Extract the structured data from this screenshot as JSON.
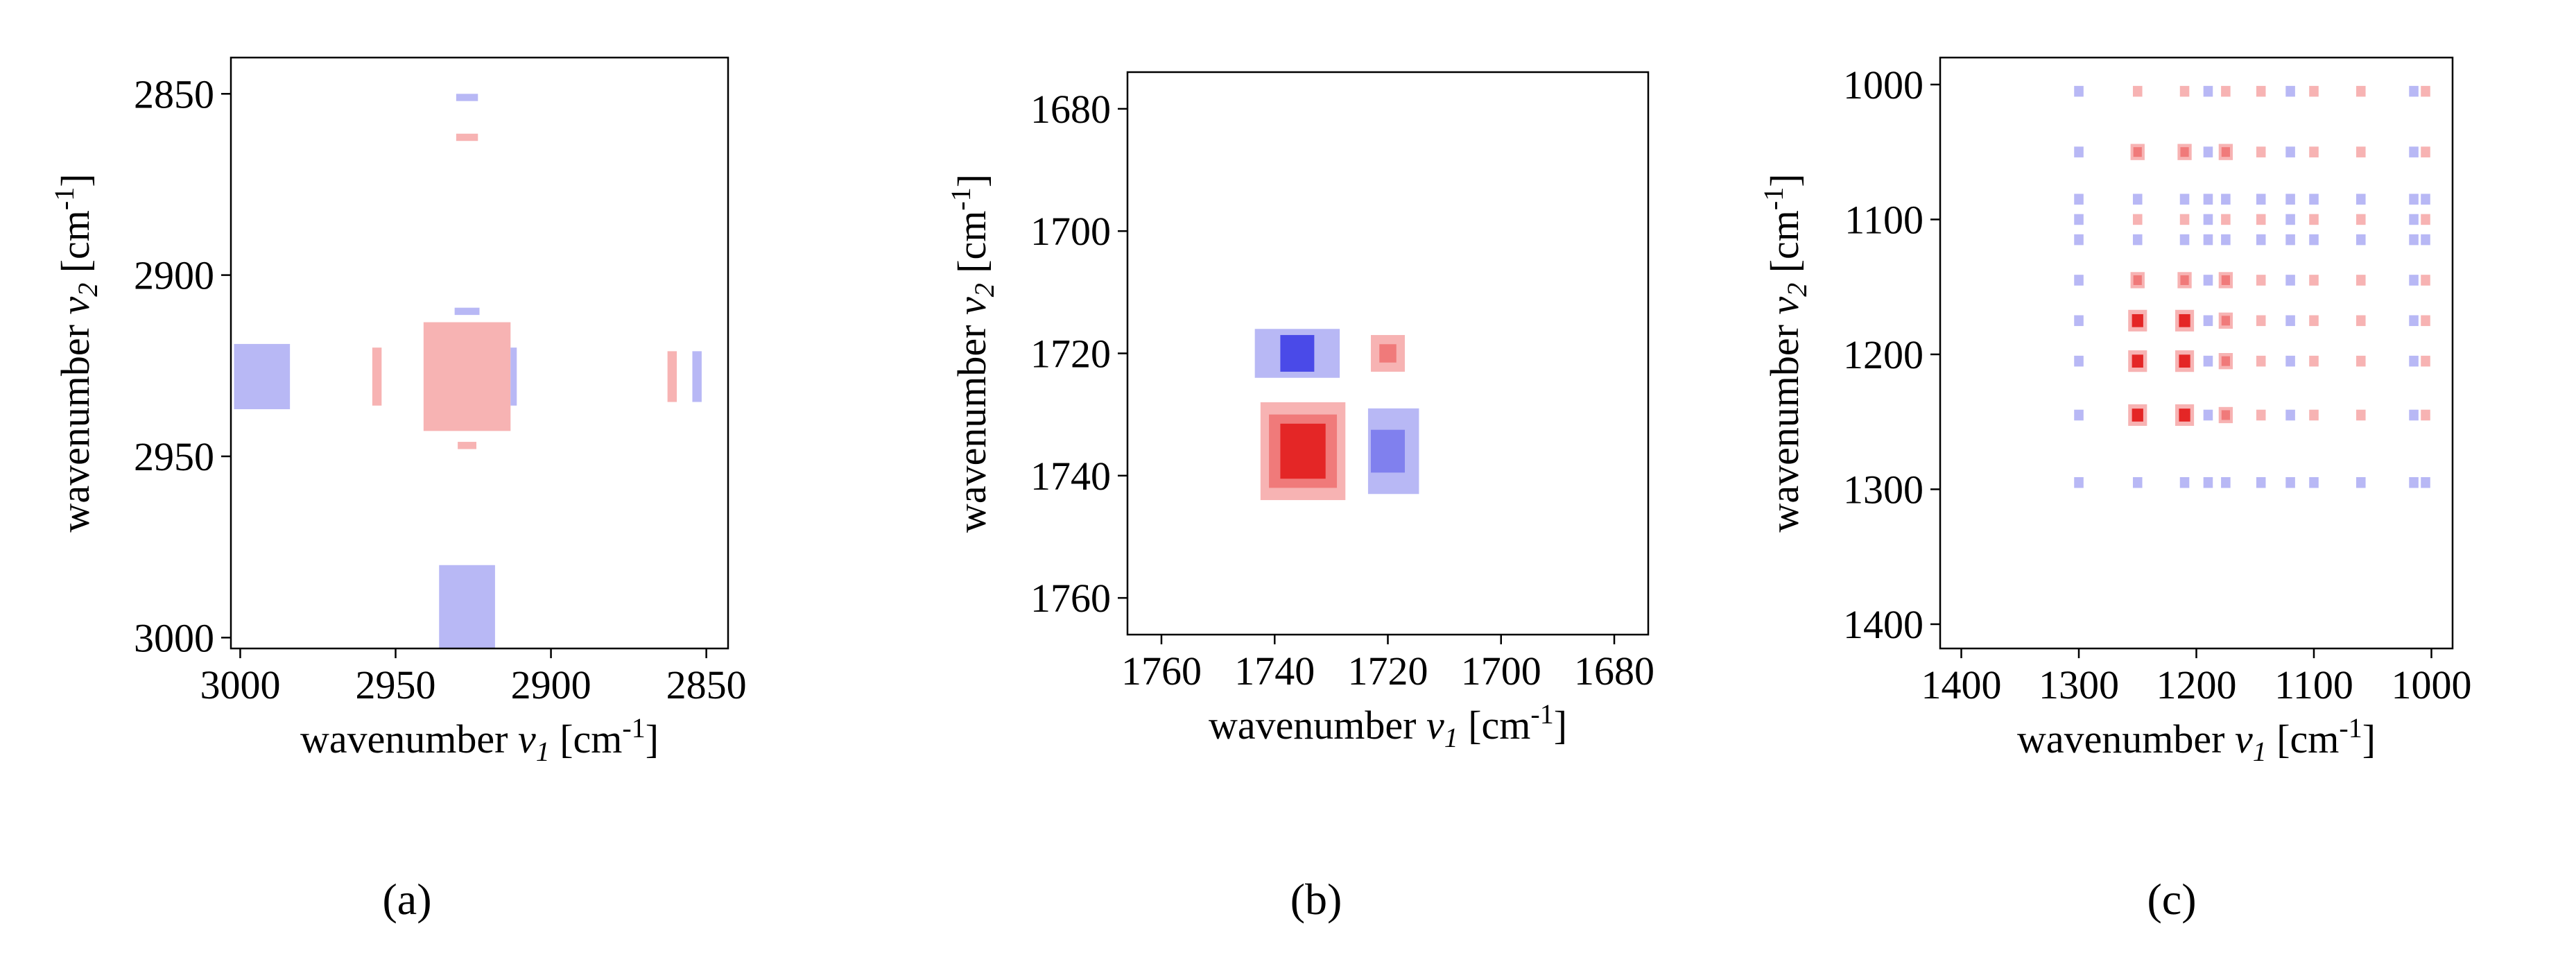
{
  "figure": {
    "panels": [
      "(a)",
      "(b)",
      "(c)"
    ]
  },
  "colors": {
    "positive": [
      "#f7b3b3",
      "#f07a7a",
      "#e42626"
    ],
    "negative": [
      "#b8b8f5",
      "#8080ee",
      "#4a4ae8"
    ],
    "frame": "#000000"
  },
  "chart_data": [
    {
      "type": "heatmap",
      "panel_label": "(a)",
      "title": "",
      "xlabel": {
        "prefix": "wavenumber ",
        "symbol": "ν",
        "sub": "1",
        "unit_open": " [cm",
        "sup": "-1",
        "unit_close": "]"
      },
      "ylabel": {
        "prefix": "wavenumber ",
        "symbol": "ν",
        "sub": "2",
        "unit_open": " [cm",
        "sup": "-1",
        "unit_close": "]"
      },
      "xlim": [
        3003,
        2843
      ],
      "ylim": [
        2840,
        3003
      ],
      "xticks": [
        3000,
        2950,
        2900,
        2850
      ],
      "yticks": [
        2850,
        2900,
        2950,
        3000
      ],
      "grid": false,
      "features": [
        {
          "x": 2927,
          "y": 2928,
          "w": 22,
          "h": 24,
          "sign": "positive",
          "level": 3
        },
        {
          "x": 2927,
          "y": 2928,
          "w": 28,
          "h": 30,
          "sign": "positive",
          "level": 1
        },
        {
          "x": 2993,
          "y": 2928,
          "w": 18,
          "h": 18,
          "sign": "negative",
          "level": 1
        },
        {
          "x": 2927,
          "y": 2992,
          "w": 18,
          "h": 24,
          "sign": "negative",
          "level": 1
        },
        {
          "x": 2927,
          "y": 2910,
          "w": 8,
          "h": 2,
          "sign": "negative",
          "level": 1
        },
        {
          "x": 2927,
          "y": 2851,
          "w": 7,
          "h": 2,
          "sign": "negative",
          "level": 1
        },
        {
          "x": 2927,
          "y": 2862,
          "w": 7,
          "h": 2,
          "sign": "positive",
          "level": 1
        },
        {
          "x": 2927,
          "y": 2947,
          "w": 6,
          "h": 2,
          "sign": "positive",
          "level": 1
        },
        {
          "x": 2956,
          "y": 2928,
          "w": 3,
          "h": 16,
          "sign": "positive",
          "level": 1
        },
        {
          "x": 2912,
          "y": 2928,
          "w": 2,
          "h": 16,
          "sign": "negative",
          "level": 1
        },
        {
          "x": 2861,
          "y": 2928,
          "w": 3,
          "h": 14,
          "sign": "positive",
          "level": 1
        },
        {
          "x": 2853,
          "y": 2928,
          "w": 3,
          "h": 14,
          "sign": "negative",
          "level": 1
        }
      ]
    },
    {
      "type": "heatmap",
      "panel_label": "(b)",
      "title": "",
      "xlabel": {
        "prefix": "wavenumber ",
        "symbol": "ν",
        "sub": "1",
        "unit_open": " [cm",
        "sup": "-1",
        "unit_close": "]"
      },
      "ylabel": {
        "prefix": "wavenumber ",
        "symbol": "ν",
        "sub": "2",
        "unit_open": " [cm",
        "sup": "-1",
        "unit_close": "]"
      },
      "xlim": [
        1766,
        1674
      ],
      "ylim": [
        1674,
        1766
      ],
      "xticks": [
        1760,
        1740,
        1720,
        1700,
        1680
      ],
      "yticks": [
        1680,
        1700,
        1720,
        1740,
        1760
      ],
      "grid": false,
      "features": [
        {
          "x": 1736,
          "y": 1720,
          "w": 15,
          "h": 8,
          "sign": "negative",
          "level": 1
        },
        {
          "x": 1736,
          "y": 1720,
          "w": 6,
          "h": 6,
          "sign": "negative",
          "level": 3
        },
        {
          "x": 1720,
          "y": 1720,
          "w": 6,
          "h": 6,
          "sign": "positive",
          "level": 1
        },
        {
          "x": 1720,
          "y": 1720,
          "w": 3,
          "h": 3,
          "sign": "positive",
          "level": 2
        },
        {
          "x": 1735,
          "y": 1736,
          "w": 15,
          "h": 16,
          "sign": "positive",
          "level": 1
        },
        {
          "x": 1735,
          "y": 1736,
          "w": 12,
          "h": 12,
          "sign": "positive",
          "level": 2
        },
        {
          "x": 1735,
          "y": 1736,
          "w": 8,
          "h": 9,
          "sign": "positive",
          "level": 3
        },
        {
          "x": 1719,
          "y": 1736,
          "w": 9,
          "h": 14,
          "sign": "negative",
          "level": 1
        },
        {
          "x": 1720,
          "y": 1736,
          "w": 6,
          "h": 7,
          "sign": "negative",
          "level": 2
        }
      ]
    },
    {
      "type": "heatmap",
      "panel_label": "(c)",
      "title": "",
      "xlabel": {
        "prefix": "wavenumber ",
        "symbol": "ν",
        "sub": "1",
        "unit_open": " [cm",
        "sup": "-1",
        "unit_close": "]"
      },
      "ylabel": {
        "prefix": "wavenumber ",
        "symbol": "ν",
        "sub": "2",
        "unit_open": " [cm",
        "sup": "-1",
        "unit_close": "]"
      },
      "xlim": [
        1418,
        982
      ],
      "ylim": [
        980,
        1418
      ],
      "xticks": [
        1400,
        1300,
        1200,
        1100,
        1000
      ],
      "yticks": [
        1000,
        1100,
        1200,
        1300,
        1400
      ],
      "grid": false,
      "columns": [
        {
          "x": 1300,
          "sign": "negative",
          "strength": 1
        },
        {
          "x": 1250,
          "sign": "positive",
          "strength": 3
        },
        {
          "x": 1210,
          "sign": "positive",
          "strength": 3
        },
        {
          "x": 1190,
          "sign": "negative",
          "strength": 1
        },
        {
          "x": 1175,
          "sign": "positive",
          "strength": 2
        },
        {
          "x": 1145,
          "sign": "positive",
          "strength": 1
        },
        {
          "x": 1120,
          "sign": "negative",
          "strength": 1
        },
        {
          "x": 1100,
          "sign": "positive",
          "strength": 1
        },
        {
          "x": 1060,
          "sign": "positive",
          "strength": 1
        },
        {
          "x": 1015,
          "sign": "negative",
          "strength": 1
        },
        {
          "x": 1005,
          "sign": "positive",
          "strength": 1
        }
      ],
      "rows": [
        {
          "y": 1005,
          "sign": "positive",
          "strength": 1
        },
        {
          "y": 1050,
          "sign": "positive",
          "strength": 2
        },
        {
          "y": 1085,
          "sign": "negative",
          "strength": 1
        },
        {
          "y": 1100,
          "sign": "positive",
          "strength": 1
        },
        {
          "y": 1115,
          "sign": "negative",
          "strength": 1
        },
        {
          "y": 1145,
          "sign": "positive",
          "strength": 2
        },
        {
          "y": 1175,
          "sign": "positive",
          "strength": 3
        },
        {
          "y": 1205,
          "sign": "positive",
          "strength": 3
        },
        {
          "y": 1245,
          "sign": "positive",
          "strength": 3
        },
        {
          "y": 1295,
          "sign": "negative",
          "strength": 1
        }
      ]
    }
  ]
}
